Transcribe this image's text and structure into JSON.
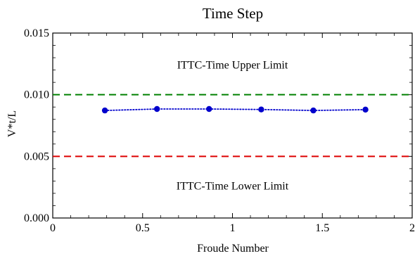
{
  "chart_data": {
    "type": "line",
    "title": "Time Step",
    "xlabel": "Froude Number",
    "ylabel": "V*t/L",
    "xlim": [
      0,
      2
    ],
    "ylim": [
      0,
      0.015
    ],
    "x_ticks": [
      0,
      0.5,
      1,
      1.5,
      2
    ],
    "x_tick_labels": [
      "0",
      "0.5",
      "1",
      "1.5",
      "2"
    ],
    "y_ticks": [
      0,
      0.005,
      0.01,
      0.015
    ],
    "y_tick_labels": [
      "0.000",
      "0.005",
      "0.010",
      "0.015"
    ],
    "grid": false,
    "series": [
      {
        "x": [
          0.29,
          0.58,
          0.87,
          1.16,
          1.45,
          1.74
        ],
        "y": [
          0.00872,
          0.00884,
          0.00884,
          0.0088,
          0.00872,
          0.00879
        ],
        "color": "#0000cc",
        "line_style": "dotted",
        "marker": "circle"
      }
    ],
    "reference_lines": [
      {
        "y": 0.01,
        "color": "#008000",
        "line_style": "dashed",
        "label": "ITTC-Time Upper Limit"
      },
      {
        "y": 0.005,
        "color": "#dd0000",
        "line_style": "dashed",
        "label": "ITTC-Time Lower Limit"
      }
    ],
    "annotations": [
      {
        "text": "ITTC-Time Upper Limit",
        "x": 1.0,
        "y": 0.0124
      },
      {
        "text": "ITTC-Time Lower Limit",
        "x": 1.0,
        "y": 0.0026
      }
    ]
  }
}
